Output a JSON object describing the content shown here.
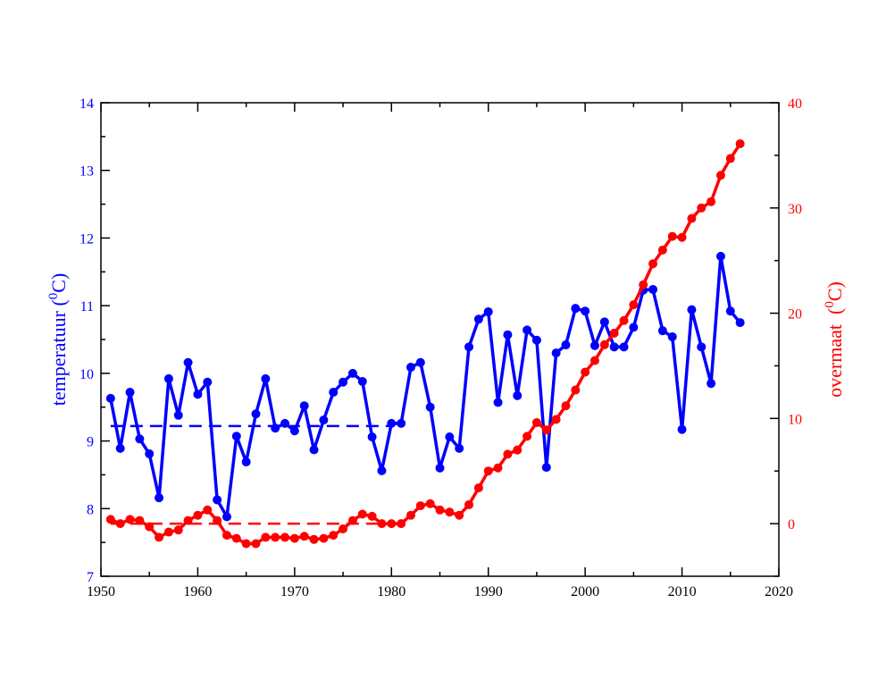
{
  "chart_data": {
    "type": "line",
    "title": "",
    "xlabel": "",
    "ylabel": "temperatuur (0C)",
    "ylabel_parts": {
      "text": "temperatuur (",
      "sup": "0",
      "unit": "C)"
    },
    "y2label": "overmaat (0C)",
    "y2label_parts": {
      "text": "overmaat  (",
      "sup": "0",
      "unit": "C)"
    },
    "xlim": [
      1950,
      2020
    ],
    "ylim": [
      7,
      14
    ],
    "y2lim": [
      -5,
      40
    ],
    "xticks": [
      "1950",
      "1960",
      "1970",
      "1980",
      "1990",
      "2000",
      "2010",
      "2020"
    ],
    "yticks": [
      "7",
      "8",
      "9",
      "10",
      "11",
      "12",
      "13",
      "14"
    ],
    "y2ticks": [
      "0",
      "10",
      "20",
      "30",
      "40"
    ],
    "colors": {
      "temperature": "#0000ff",
      "overmaat": "#ff0000",
      "axis": "#000000"
    },
    "x": [
      1951,
      1952,
      1953,
      1954,
      1955,
      1956,
      1957,
      1958,
      1959,
      1960,
      1961,
      1962,
      1963,
      1964,
      1965,
      1966,
      1967,
      1968,
      1969,
      1970,
      1971,
      1972,
      1973,
      1974,
      1975,
      1976,
      1977,
      1978,
      1979,
      1980,
      1981,
      1982,
      1983,
      1984,
      1985,
      1986,
      1987,
      1988,
      1989,
      1990,
      1991,
      1992,
      1993,
      1994,
      1995,
      1996,
      1997,
      1998,
      1999,
      2000,
      2001,
      2002,
      2003,
      2004,
      2005,
      2006,
      2007,
      2008,
      2009,
      2010,
      2011,
      2012,
      2013,
      2014,
      2015,
      2016
    ],
    "series": [
      {
        "name": "temperatuur",
        "axis": "left",
        "values": [
          9.63,
          8.89,
          9.72,
          9.03,
          8.81,
          8.16,
          9.92,
          9.38,
          10.16,
          9.69,
          9.87,
          8.13,
          7.88,
          9.07,
          8.69,
          9.4,
          9.92,
          9.19,
          9.26,
          9.15,
          9.52,
          8.87,
          9.31,
          9.72,
          9.87,
          10.0,
          9.88,
          9.06,
          8.56,
          9.26,
          9.26,
          10.09,
          10.16,
          9.5,
          8.6,
          9.06,
          8.89,
          10.39,
          10.8,
          10.91,
          9.57,
          10.57,
          9.67,
          10.64,
          10.49,
          8.61,
          10.3,
          10.42,
          10.96,
          10.92,
          10.41,
          10.76,
          10.39,
          10.39,
          10.68,
          11.23,
          11.24,
          10.63,
          10.54,
          9.17,
          10.94,
          10.39,
          9.85,
          11.73,
          10.92,
          10.75
        ]
      },
      {
        "name": "overmaat",
        "axis": "right",
        "values": [
          0.4,
          0.0,
          0.4,
          0.3,
          -0.3,
          -1.3,
          -0.8,
          -0.6,
          0.3,
          0.8,
          1.3,
          0.3,
          -1.1,
          -1.4,
          -1.9,
          -1.9,
          -1.3,
          -1.3,
          -1.3,
          -1.4,
          -1.2,
          -1.5,
          -1.4,
          -1.1,
          -0.5,
          0.3,
          0.9,
          0.7,
          0.0,
          0.0,
          0.0,
          0.8,
          1.7,
          1.9,
          1.3,
          1.1,
          0.8,
          1.8,
          3.4,
          5.0,
          5.3,
          6.6,
          7.0,
          8.3,
          9.6,
          8.9,
          9.9,
          11.2,
          12.7,
          14.4,
          15.5,
          17.0,
          18.1,
          19.3,
          20.8,
          22.7,
          24.7,
          26.0,
          27.3,
          27.2,
          29.0,
          30.0,
          30.6,
          33.1,
          34.7,
          36.1
        ]
      }
    ],
    "reference_lines": [
      {
        "name": "temperatuur-mean-1951-1980",
        "axis": "left",
        "value": 9.22,
        "x": [
          1951,
          1980
        ],
        "style": "dashed"
      },
      {
        "name": "overmaat-zero-1951-1980",
        "axis": "right",
        "value": 0,
        "x": [
          1951,
          1980
        ],
        "style": "dashed"
      }
    ]
  }
}
